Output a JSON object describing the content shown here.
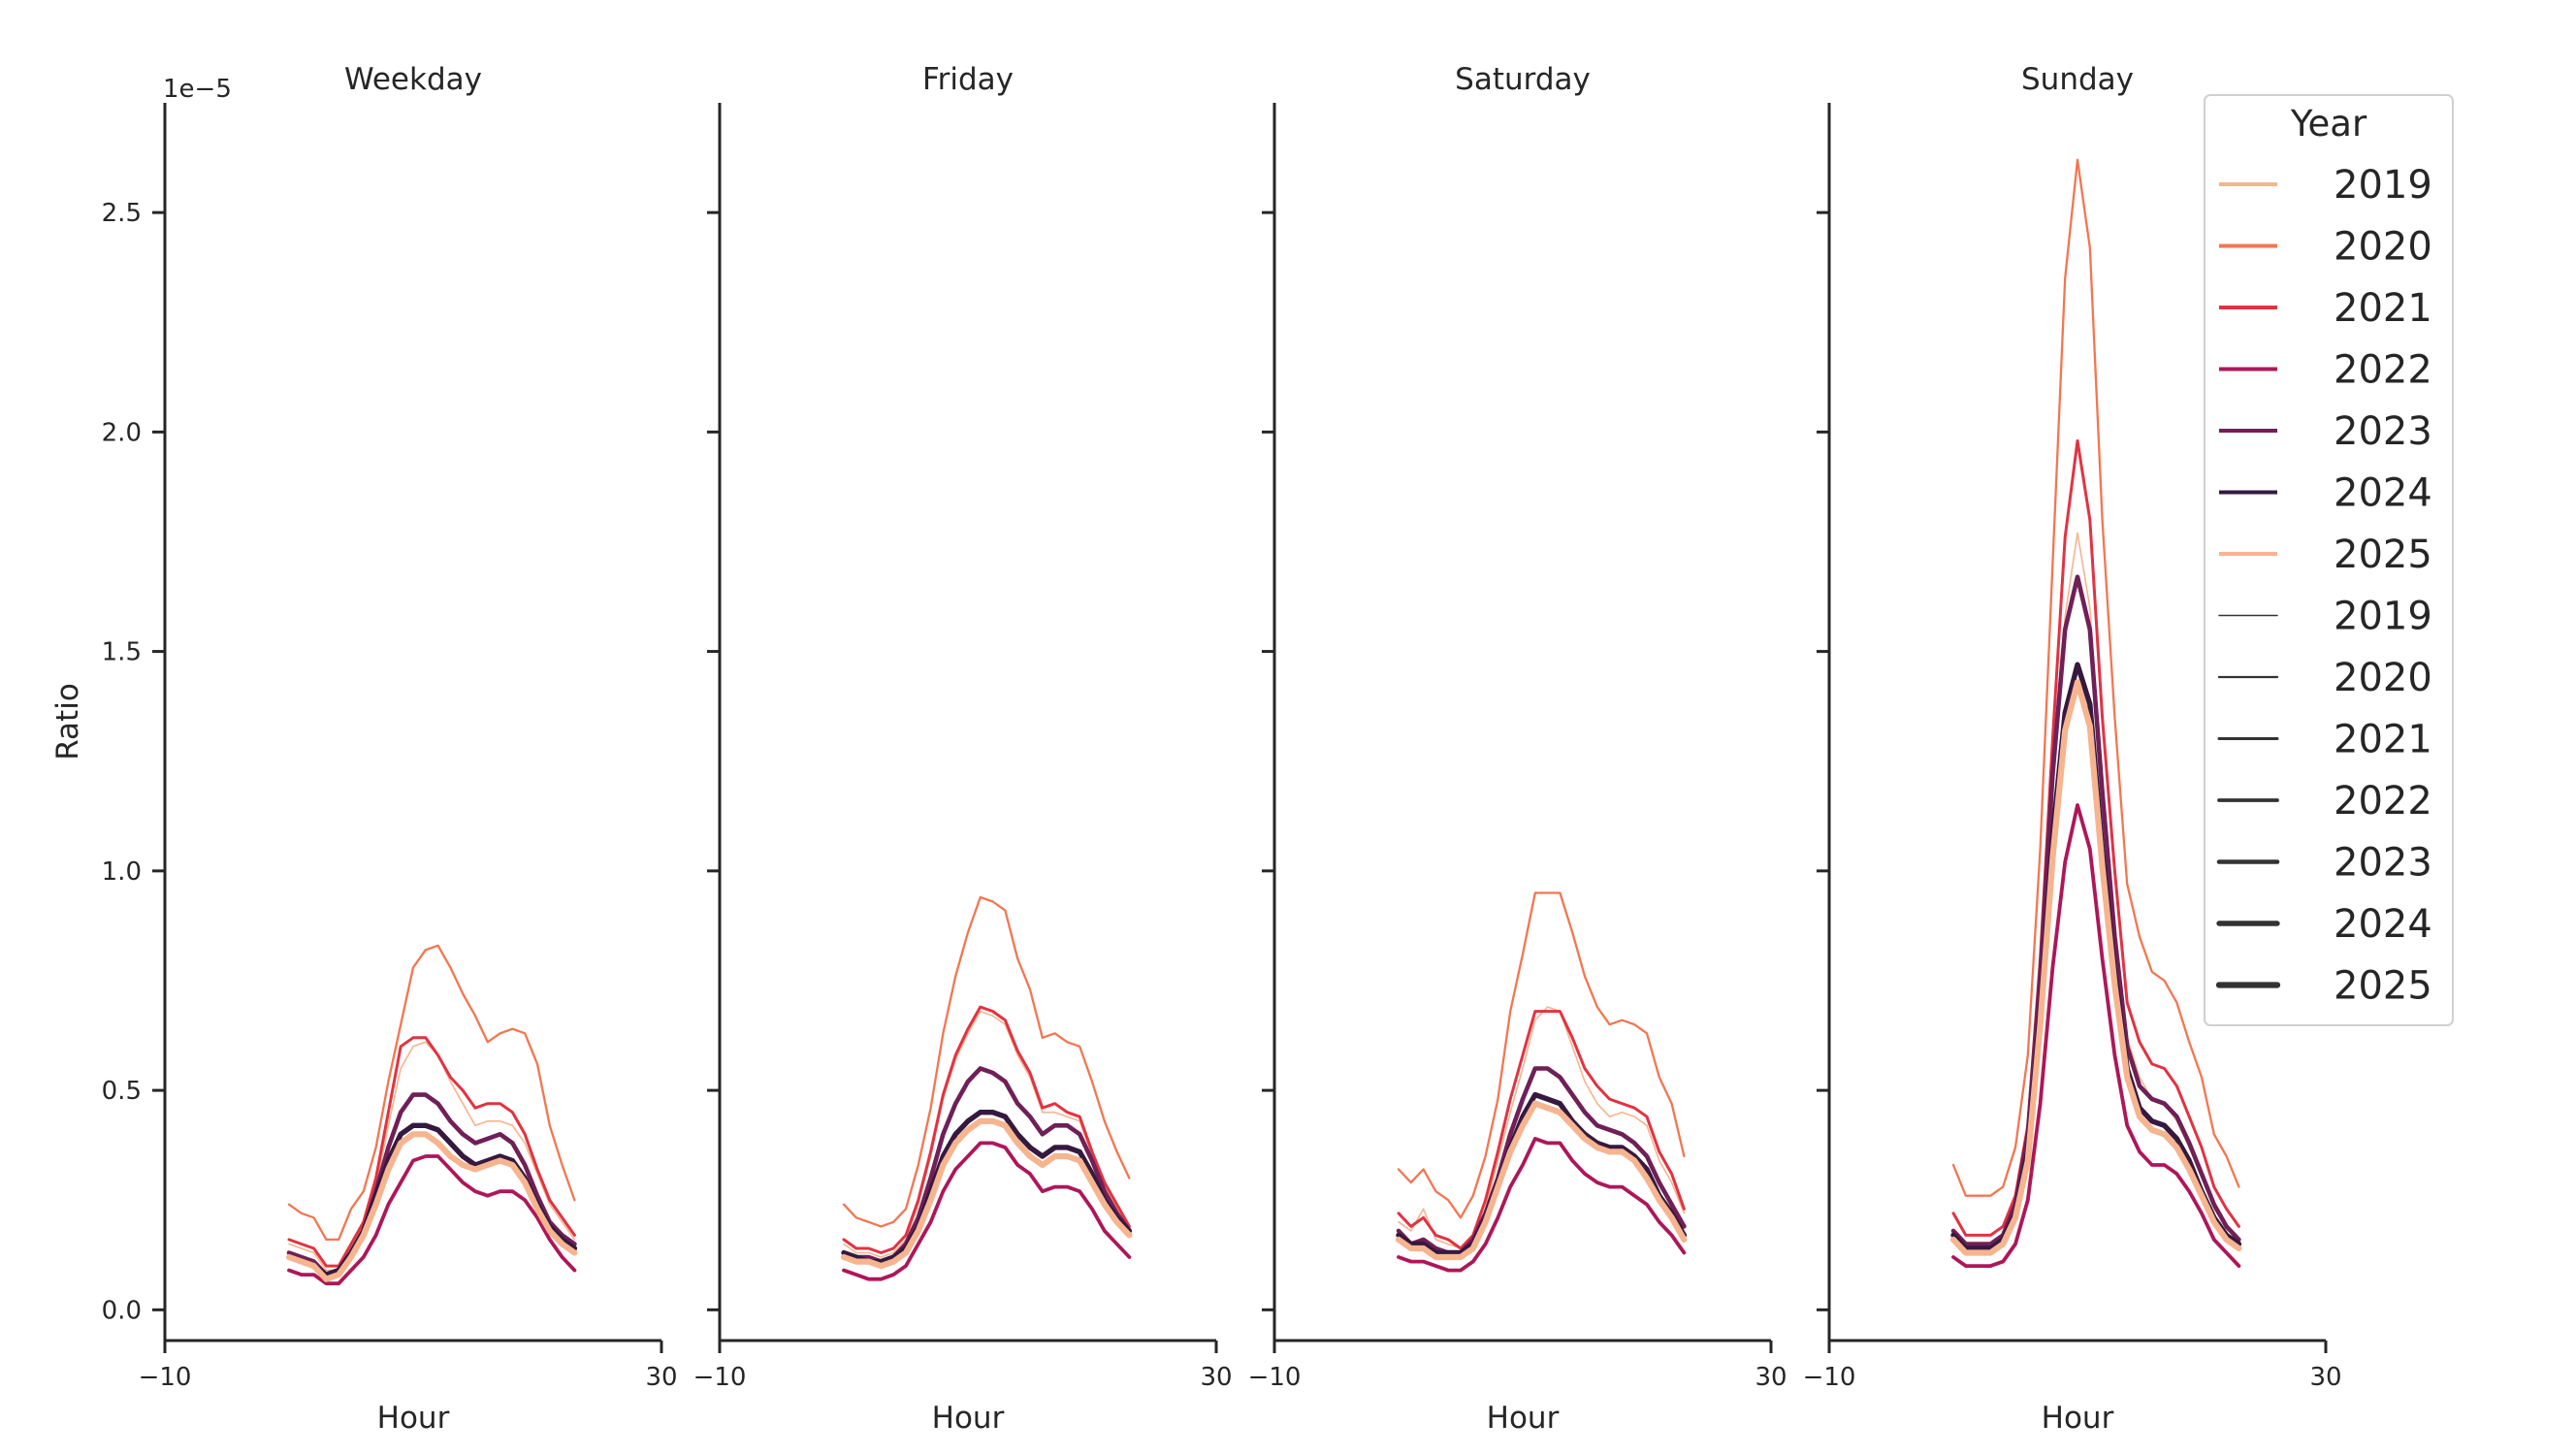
{
  "chart_data": [
    {
      "type": "line",
      "title": "Weekday",
      "xlabel": "Hour",
      "ylabel": "Ratio",
      "offset_text": "1e−5",
      "xlim": [
        -10,
        30
      ],
      "ylim": [
        -0.07,
        2.75
      ],
      "x_ticks": [
        "−10",
        "30"
      ],
      "y_ticks": [
        "0.0",
        "0.5",
        "1.0",
        "1.5",
        "2.0",
        "2.5"
      ],
      "x": [
        0,
        1,
        2,
        3,
        4,
        5,
        6,
        7,
        8,
        9,
        10,
        11,
        12,
        13,
        14,
        15,
        16,
        17,
        18,
        19,
        20,
        21,
        22,
        23
      ],
      "series": [
        {
          "name": "2019",
          "values": [
            0.15,
            0.14,
            0.13,
            0.09,
            0.09,
            0.14,
            0.19,
            0.28,
            0.42,
            0.55,
            0.6,
            0.61,
            0.58,
            0.52,
            0.47,
            0.42,
            0.43,
            0.43,
            0.42,
            0.38,
            0.31,
            0.24,
            0.2,
            0.16
          ]
        },
        {
          "name": "2020",
          "values": [
            0.24,
            0.22,
            0.21,
            0.16,
            0.16,
            0.23,
            0.27,
            0.37,
            0.52,
            0.65,
            0.78,
            0.82,
            0.83,
            0.78,
            0.72,
            0.67,
            0.61,
            0.63,
            0.64,
            0.63,
            0.56,
            0.42,
            0.33,
            0.25
          ]
        },
        {
          "name": "2021",
          "values": [
            0.16,
            0.15,
            0.14,
            0.1,
            0.1,
            0.15,
            0.2,
            0.3,
            0.45,
            0.6,
            0.62,
            0.62,
            0.58,
            0.53,
            0.5,
            0.46,
            0.47,
            0.47,
            0.45,
            0.4,
            0.32,
            0.25,
            0.21,
            0.17
          ]
        },
        {
          "name": "2022",
          "values": [
            0.09,
            0.08,
            0.08,
            0.06,
            0.06,
            0.09,
            0.12,
            0.17,
            0.24,
            0.29,
            0.34,
            0.35,
            0.35,
            0.32,
            0.29,
            0.27,
            0.26,
            0.27,
            0.27,
            0.25,
            0.21,
            0.16,
            0.12,
            0.09
          ]
        },
        {
          "name": "2023",
          "values": [
            0.13,
            0.12,
            0.11,
            0.08,
            0.09,
            0.13,
            0.18,
            0.27,
            0.37,
            0.45,
            0.49,
            0.49,
            0.47,
            0.43,
            0.4,
            0.38,
            0.39,
            0.4,
            0.38,
            0.33,
            0.26,
            0.2,
            0.17,
            0.15
          ]
        },
        {
          "name": "2024",
          "values": [
            0.12,
            0.11,
            0.1,
            0.08,
            0.09,
            0.13,
            0.18,
            0.26,
            0.34,
            0.4,
            0.42,
            0.42,
            0.41,
            0.38,
            0.35,
            0.33,
            0.34,
            0.35,
            0.34,
            0.3,
            0.24,
            0.19,
            0.16,
            0.14
          ]
        },
        {
          "name": "2025",
          "values": [
            0.12,
            0.11,
            0.1,
            0.07,
            0.08,
            0.12,
            0.17,
            0.24,
            0.32,
            0.38,
            0.4,
            0.4,
            0.38,
            0.35,
            0.33,
            0.32,
            0.33,
            0.34,
            0.33,
            0.29,
            0.23,
            0.18,
            0.15,
            0.13
          ]
        }
      ]
    },
    {
      "type": "line",
      "title": "Friday",
      "xlabel": "Hour",
      "xlim": [
        -10,
        30
      ],
      "ylim": [
        -0.07,
        2.75
      ],
      "x_ticks": [
        "−10",
        "30"
      ],
      "x": [
        0,
        1,
        2,
        3,
        4,
        5,
        6,
        7,
        8,
        9,
        10,
        11,
        12,
        13,
        14,
        15,
        16,
        17,
        18,
        19,
        20,
        21,
        22,
        23
      ],
      "series": [
        {
          "name": "2019",
          "values": [
            0.15,
            0.13,
            0.13,
            0.12,
            0.13,
            0.16,
            0.24,
            0.35,
            0.48,
            0.57,
            0.63,
            0.68,
            0.67,
            0.65,
            0.58,
            0.53,
            0.45,
            0.45,
            0.44,
            0.43,
            0.35,
            0.28,
            0.23,
            0.18
          ]
        },
        {
          "name": "2020",
          "values": [
            0.24,
            0.21,
            0.2,
            0.19,
            0.2,
            0.23,
            0.33,
            0.46,
            0.63,
            0.76,
            0.86,
            0.94,
            0.93,
            0.91,
            0.8,
            0.73,
            0.62,
            0.63,
            0.61,
            0.6,
            0.52,
            0.43,
            0.36,
            0.3
          ]
        },
        {
          "name": "2021",
          "values": [
            0.16,
            0.14,
            0.14,
            0.13,
            0.14,
            0.17,
            0.25,
            0.36,
            0.49,
            0.58,
            0.64,
            0.69,
            0.68,
            0.66,
            0.59,
            0.54,
            0.46,
            0.47,
            0.45,
            0.44,
            0.36,
            0.29,
            0.24,
            0.19
          ]
        },
        {
          "name": "2022",
          "values": [
            0.09,
            0.08,
            0.07,
            0.07,
            0.08,
            0.1,
            0.15,
            0.2,
            0.27,
            0.32,
            0.35,
            0.38,
            0.38,
            0.37,
            0.33,
            0.31,
            0.27,
            0.28,
            0.28,
            0.27,
            0.23,
            0.18,
            0.15,
            0.12
          ]
        },
        {
          "name": "2023",
          "values": [
            0.13,
            0.12,
            0.12,
            0.11,
            0.12,
            0.15,
            0.21,
            0.3,
            0.4,
            0.47,
            0.52,
            0.55,
            0.54,
            0.52,
            0.47,
            0.44,
            0.4,
            0.42,
            0.42,
            0.4,
            0.34,
            0.27,
            0.22,
            0.18
          ]
        },
        {
          "name": "2024",
          "values": [
            0.13,
            0.12,
            0.11,
            0.11,
            0.12,
            0.14,
            0.19,
            0.27,
            0.35,
            0.4,
            0.43,
            0.45,
            0.45,
            0.44,
            0.4,
            0.37,
            0.35,
            0.37,
            0.37,
            0.36,
            0.31,
            0.25,
            0.21,
            0.18
          ]
        },
        {
          "name": "2025",
          "values": [
            0.12,
            0.11,
            0.11,
            0.1,
            0.11,
            0.13,
            0.18,
            0.25,
            0.33,
            0.38,
            0.41,
            0.43,
            0.43,
            0.42,
            0.38,
            0.35,
            0.33,
            0.35,
            0.35,
            0.34,
            0.29,
            0.24,
            0.2,
            0.17
          ]
        }
      ]
    },
    {
      "type": "line",
      "title": "Saturday",
      "xlabel": "Hour",
      "xlim": [
        -10,
        30
      ],
      "ylim": [
        -0.07,
        2.75
      ],
      "x_ticks": [
        "−10",
        "30"
      ],
      "x": [
        0,
        1,
        2,
        3,
        4,
        5,
        6,
        7,
        8,
        9,
        10,
        11,
        12,
        13,
        14,
        15,
        16,
        17,
        18,
        19,
        20,
        21,
        22,
        23
      ],
      "series": [
        {
          "name": "2019",
          "values": [
            0.2,
            0.18,
            0.23,
            0.16,
            0.15,
            0.14,
            0.16,
            0.23,
            0.34,
            0.45,
            0.55,
            0.66,
            0.69,
            0.68,
            0.6,
            0.52,
            0.47,
            0.44,
            0.45,
            0.44,
            0.42,
            0.34,
            0.29,
            0.22
          ]
        },
        {
          "name": "2020",
          "values": [
            0.32,
            0.29,
            0.32,
            0.27,
            0.25,
            0.21,
            0.26,
            0.35,
            0.48,
            0.68,
            0.81,
            0.95,
            0.95,
            0.95,
            0.86,
            0.76,
            0.69,
            0.65,
            0.66,
            0.65,
            0.63,
            0.53,
            0.47,
            0.35
          ]
        },
        {
          "name": "2021",
          "values": [
            0.22,
            0.19,
            0.21,
            0.17,
            0.16,
            0.14,
            0.17,
            0.25,
            0.36,
            0.48,
            0.58,
            0.68,
            0.68,
            0.68,
            0.62,
            0.55,
            0.51,
            0.48,
            0.47,
            0.46,
            0.44,
            0.36,
            0.31,
            0.23
          ]
        },
        {
          "name": "2022",
          "values": [
            0.12,
            0.11,
            0.11,
            0.1,
            0.09,
            0.09,
            0.11,
            0.15,
            0.21,
            0.28,
            0.33,
            0.39,
            0.38,
            0.38,
            0.34,
            0.31,
            0.29,
            0.28,
            0.28,
            0.26,
            0.24,
            0.2,
            0.17,
            0.13
          ]
        },
        {
          "name": "2023",
          "values": [
            0.18,
            0.15,
            0.16,
            0.14,
            0.13,
            0.13,
            0.16,
            0.22,
            0.3,
            0.4,
            0.48,
            0.55,
            0.55,
            0.53,
            0.49,
            0.45,
            0.42,
            0.41,
            0.4,
            0.38,
            0.35,
            0.29,
            0.24,
            0.19
          ]
        },
        {
          "name": "2024",
          "values": [
            0.17,
            0.15,
            0.15,
            0.13,
            0.13,
            0.13,
            0.15,
            0.21,
            0.29,
            0.37,
            0.44,
            0.49,
            0.48,
            0.47,
            0.43,
            0.4,
            0.38,
            0.37,
            0.37,
            0.35,
            0.32,
            0.26,
            0.22,
            0.17
          ]
        },
        {
          "name": "2025",
          "values": [
            0.16,
            0.14,
            0.14,
            0.12,
            0.12,
            0.12,
            0.14,
            0.2,
            0.28,
            0.36,
            0.42,
            0.47,
            0.46,
            0.45,
            0.42,
            0.39,
            0.37,
            0.36,
            0.36,
            0.34,
            0.3,
            0.25,
            0.21,
            0.16
          ]
        }
      ]
    },
    {
      "type": "line",
      "title": "Sunday",
      "xlabel": "Hour",
      "xlim": [
        -10,
        30
      ],
      "ylim": [
        -0.07,
        2.75
      ],
      "x_ticks": [
        "−10",
        "30"
      ],
      "x": [
        0,
        1,
        2,
        3,
        4,
        5,
        6,
        7,
        8,
        9,
        10,
        11,
        12,
        13,
        14,
        15,
        16,
        17,
        18,
        19,
        20,
        21,
        22,
        23
      ],
      "series": [
        {
          "name": "2019",
          "values": [
            0.18,
            0.14,
            0.14,
            0.14,
            0.16,
            0.23,
            0.38,
            0.72,
            1.2,
            1.58,
            1.77,
            1.6,
            1.2,
            0.88,
            0.62,
            0.53,
            0.48,
            0.47,
            0.43,
            0.37,
            0.31,
            0.23,
            0.19,
            0.15
          ]
        },
        {
          "name": "2020",
          "values": [
            0.33,
            0.26,
            0.26,
            0.26,
            0.28,
            0.37,
            0.58,
            1.05,
            1.7,
            2.35,
            2.62,
            2.42,
            1.8,
            1.35,
            0.97,
            0.85,
            0.77,
            0.75,
            0.7,
            0.61,
            0.53,
            0.4,
            0.35,
            0.28
          ]
        },
        {
          "name": "2021",
          "values": [
            0.22,
            0.17,
            0.17,
            0.17,
            0.19,
            0.26,
            0.42,
            0.8,
            1.3,
            1.76,
            1.98,
            1.8,
            1.35,
            1.0,
            0.7,
            0.61,
            0.56,
            0.55,
            0.51,
            0.44,
            0.37,
            0.28,
            0.23,
            0.19
          ]
        },
        {
          "name": "2022",
          "values": [
            0.12,
            0.1,
            0.1,
            0.1,
            0.11,
            0.15,
            0.25,
            0.47,
            0.78,
            1.02,
            1.15,
            1.05,
            0.8,
            0.58,
            0.42,
            0.36,
            0.33,
            0.33,
            0.31,
            0.27,
            0.22,
            0.16,
            0.13,
            0.1
          ]
        },
        {
          "name": "2023",
          "values": [
            0.18,
            0.15,
            0.15,
            0.15,
            0.17,
            0.24,
            0.4,
            0.76,
            1.22,
            1.55,
            1.67,
            1.55,
            1.18,
            0.85,
            0.6,
            0.51,
            0.48,
            0.47,
            0.44,
            0.38,
            0.31,
            0.24,
            0.19,
            0.16
          ]
        },
        {
          "name": "2024",
          "values": [
            0.17,
            0.14,
            0.14,
            0.14,
            0.16,
            0.22,
            0.36,
            0.68,
            1.08,
            1.36,
            1.47,
            1.38,
            1.05,
            0.77,
            0.55,
            0.46,
            0.43,
            0.42,
            0.39,
            0.34,
            0.27,
            0.21,
            0.17,
            0.15
          ]
        },
        {
          "name": "2025",
          "values": [
            0.16,
            0.13,
            0.13,
            0.13,
            0.15,
            0.21,
            0.34,
            0.65,
            1.03,
            1.32,
            1.43,
            1.33,
            1.01,
            0.74,
            0.53,
            0.44,
            0.41,
            0.4,
            0.37,
            0.32,
            0.26,
            0.2,
            0.16,
            0.14
          ]
        }
      ]
    }
  ],
  "legend": {
    "title": "Year",
    "placement": "top-right",
    "hue_entries": [
      {
        "label": "2019",
        "color": "#f6b48f"
      },
      {
        "label": "2020",
        "color": "#f37651"
      },
      {
        "label": "2021",
        "color": "#e13342"
      },
      {
        "label": "2022",
        "color": "#ad1759"
      },
      {
        "label": "2023",
        "color": "#701f57"
      },
      {
        "label": "2024",
        "color": "#35193e"
      },
      {
        "label": "2025",
        "color": "#f6b48f"
      }
    ],
    "size_entries": [
      {
        "label": "2019"
      },
      {
        "label": "2020"
      },
      {
        "label": "2021"
      },
      {
        "label": "2022"
      },
      {
        "label": "2023"
      },
      {
        "label": "2024"
      },
      {
        "label": "2025"
      }
    ]
  }
}
